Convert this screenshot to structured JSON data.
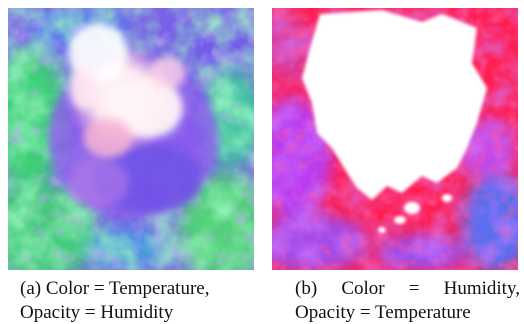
{
  "figure": {
    "panels": [
      {
        "id": "a",
        "caption_line1": "(a) Color = Temperature,",
        "caption_line2": "Opacity = Humidity",
        "colors": {
          "dominant": "#8a5cf0",
          "secondary": "#3fcf7a",
          "core": "#ffffff",
          "accent": "#ff7fb0"
        }
      },
      {
        "id": "b",
        "caption_line1_parts": [
          "(b)",
          "Color",
          "=",
          "Humidity,"
        ],
        "caption_line2": "Opacity = Temperature",
        "colors": {
          "dominant": "#ff1f4f",
          "secondary": "#a03cff",
          "core": "#ffffff",
          "accent": "#4a7cf0"
        }
      }
    ]
  }
}
